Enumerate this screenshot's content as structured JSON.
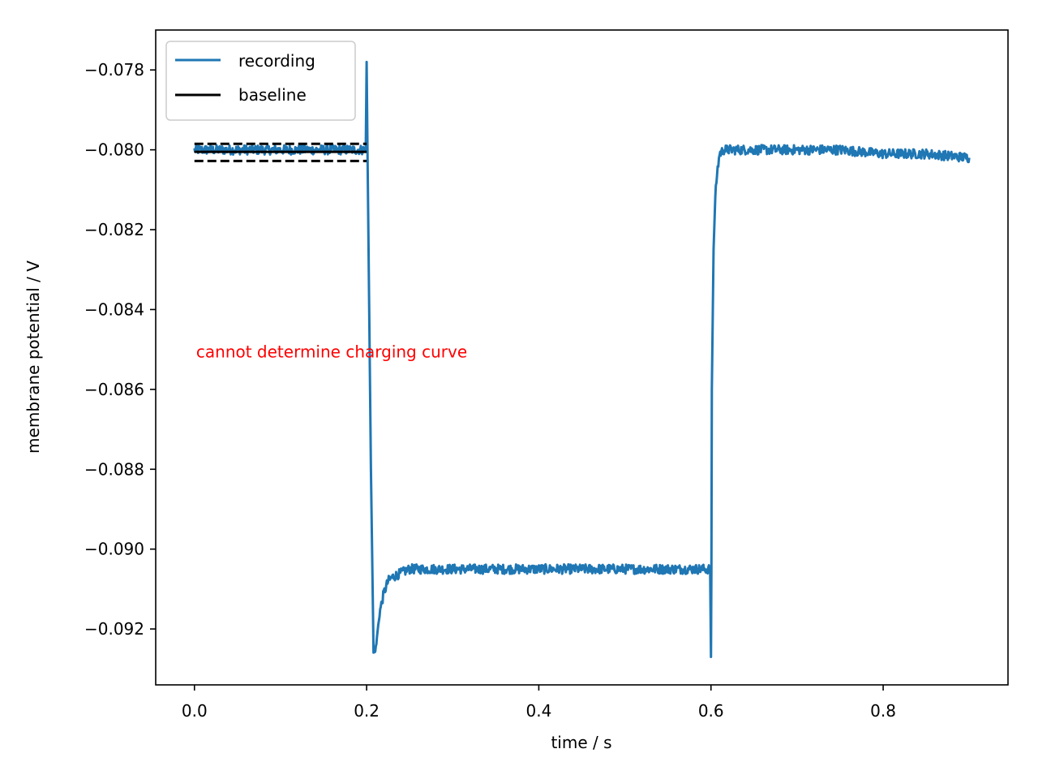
{
  "chart_data": {
    "type": "line",
    "title": "",
    "xlabel": "time / s",
    "ylabel": "membrane potential / V",
    "xlim": [
      -0.045,
      0.945
    ],
    "ylim": [
      -0.0934,
      -0.077
    ],
    "xticks": [
      0.0,
      0.2,
      0.4,
      0.6,
      0.8
    ],
    "xtick_labels": [
      "0.0",
      "0.2",
      "0.4",
      "0.6",
      "0.8"
    ],
    "yticks": [
      -0.078,
      -0.08,
      -0.082,
      -0.084,
      -0.086,
      -0.088,
      -0.09,
      -0.092
    ],
    "ytick_labels": [
      "−0.078",
      "−0.080",
      "−0.082",
      "−0.084",
      "−0.086",
      "−0.088",
      "−0.090",
      "−0.092"
    ],
    "grid": false,
    "legend_position": "top-left",
    "legend": [
      {
        "label": "recording",
        "color": "#1f77b4"
      },
      {
        "label": "baseline",
        "color": "#000000"
      }
    ],
    "series": [
      {
        "name": "recording",
        "color": "#1f77b4",
        "x": [
          0.0,
          0.05,
          0.1,
          0.15,
          0.199,
          0.2,
          0.201,
          0.203,
          0.205,
          0.207,
          0.208,
          0.21,
          0.212,
          0.215,
          0.22,
          0.225,
          0.23,
          0.24,
          0.25,
          0.26,
          0.28,
          0.3,
          0.35,
          0.4,
          0.45,
          0.5,
          0.55,
          0.599,
          0.6,
          0.6005,
          0.601,
          0.603,
          0.605,
          0.607,
          0.61,
          0.615,
          0.62,
          0.63,
          0.65,
          0.7,
          0.75,
          0.8,
          0.85,
          0.9
        ],
        "y": [
          -0.08,
          -0.08,
          -0.08,
          -0.08,
          -0.08,
          -0.0778,
          -0.08,
          -0.084,
          -0.088,
          -0.091,
          -0.0925,
          -0.0926,
          -0.0922,
          -0.0916,
          -0.0911,
          -0.0908,
          -0.0907,
          -0.0906,
          -0.0905,
          -0.0905,
          -0.0905,
          -0.0905,
          -0.0905,
          -0.0905,
          -0.0905,
          -0.0905,
          -0.0905,
          -0.0905,
          -0.0927,
          -0.0905,
          -0.086,
          -0.0825,
          -0.0812,
          -0.0806,
          -0.0801,
          -0.08,
          -0.08,
          -0.08,
          -0.08,
          -0.08,
          -0.08,
          -0.0801,
          -0.0801,
          -0.0802
        ],
        "noise_amplitude": 0.00012
      }
    ],
    "baseline": {
      "name": "baseline",
      "color": "#000000",
      "x": [
        0.0,
        0.2
      ],
      "mean": -0.08005,
      "upper": -0.07985,
      "lower": -0.08028
    },
    "annotations": [
      {
        "text": "cannot determine charging curve",
        "x": 0.002,
        "y": -0.0852,
        "color": "#ff0000"
      }
    ]
  }
}
